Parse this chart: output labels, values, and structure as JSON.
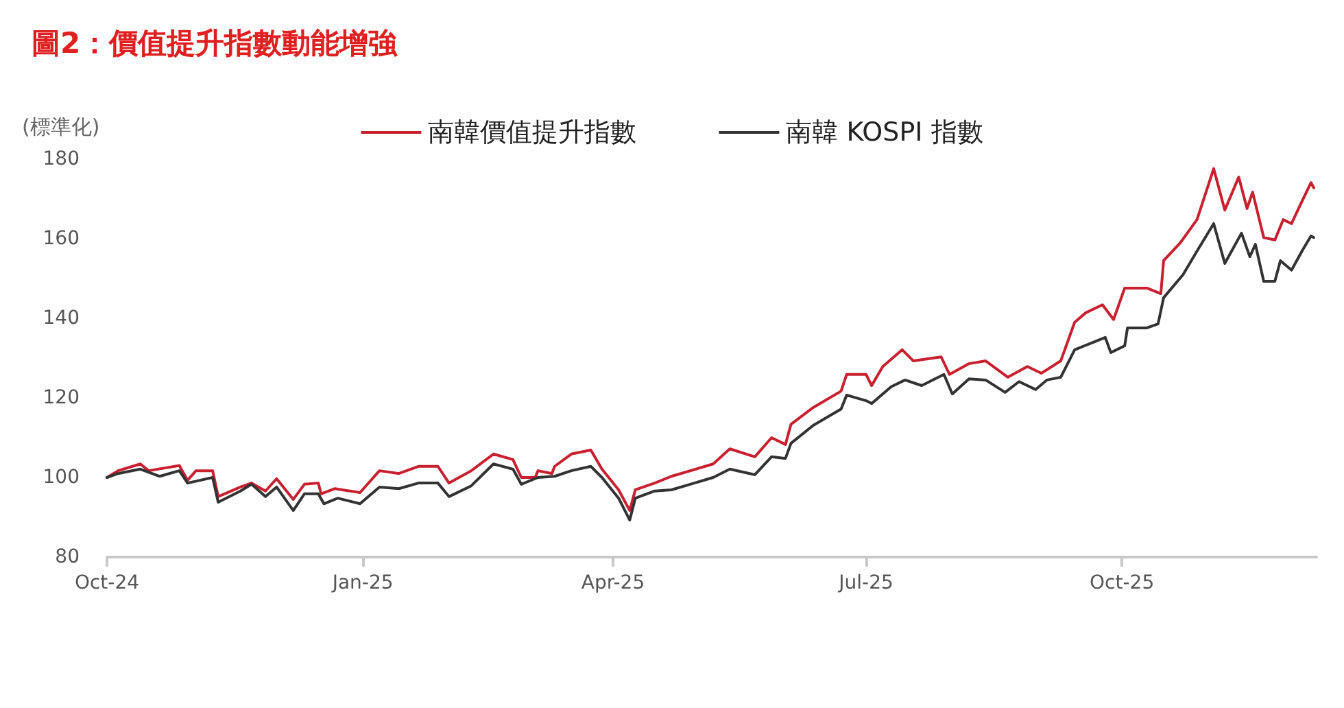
{
  "chart_data": {
    "type": "line",
    "title": "圖2：價值提升指數動能增強",
    "ylabel": "(標準化)",
    "xlim": [
      "2024-10-01",
      "2025-12-10"
    ],
    "xticks": [
      {
        "value": "2024-10-01",
        "label": "Oct-24"
      },
      {
        "value": "2025-01-01",
        "label": "Jan-25"
      },
      {
        "value": "2025-04-01",
        "label": "Apr-25"
      },
      {
        "value": "2025-07-01",
        "label": "Jul-25"
      },
      {
        "value": "2025-10-01",
        "label": "Oct-25"
      }
    ],
    "ylim": [
      80,
      180
    ],
    "yticks": [
      80,
      100,
      120,
      140,
      160,
      180
    ],
    "grid": false,
    "legend": "top",
    "marker": "none",
    "line_style": "solid",
    "series": [
      {
        "name": "南韓價值提升指數",
        "color": "#c8202f",
        "x": [
          "2024-10-01",
          "2024-10-05",
          "2024-10-13",
          "2024-10-16",
          "2024-10-27",
          "2024-10-30",
          "2024-11-02",
          "2024-11-08",
          "2024-11-10",
          "2024-11-18",
          "2024-11-22",
          "2024-11-27",
          "2024-12-01",
          "2024-12-07",
          "2024-12-11",
          "2024-12-16",
          "2024-12-17",
          "2024-12-22",
          "2024-12-31",
          "2025-01-07",
          "2025-01-14",
          "2025-01-21",
          "2025-01-28",
          "2025-02-01",
          "2025-02-09",
          "2025-02-17",
          "2025-02-24",
          "2025-02-27",
          "2025-03-04",
          "2025-03-05",
          "2025-03-10",
          "2025-03-11",
          "2025-03-17",
          "2025-03-24",
          "2025-03-28",
          "2025-04-03",
          "2025-04-07",
          "2025-04-09",
          "2025-04-16",
          "2025-04-22",
          "2025-05-07",
          "2025-05-13",
          "2025-05-22",
          "2025-05-28",
          "2025-06-02",
          "2025-06-04",
          "2025-06-12",
          "2025-06-22",
          "2025-06-24",
          "2025-07-01",
          "2025-07-03",
          "2025-07-07",
          "2025-07-14",
          "2025-07-18",
          "2025-07-28",
          "2025-07-31",
          "2025-08-07",
          "2025-08-13",
          "2025-08-21",
          "2025-08-28",
          "2025-09-02",
          "2025-09-09",
          "2025-09-14",
          "2025-09-18",
          "2025-09-24",
          "2025-09-28",
          "2025-10-02",
          "2025-10-10",
          "2025-10-15",
          "2025-10-16",
          "2025-10-22",
          "2025-10-28",
          "2025-11-03",
          "2025-11-07",
          "2025-11-12",
          "2025-11-15",
          "2025-11-17",
          "2025-11-21",
          "2025-11-25",
          "2025-11-28",
          "2025-12-01",
          "2025-12-04",
          "2025-12-08",
          "2025-12-09"
        ],
        "values": [
          100,
          101.7,
          103.4,
          101.7,
          103,
          99.3,
          101.7,
          101.7,
          95.2,
          97.6,
          98.6,
          96.6,
          99.7,
          94.5,
          98.3,
          98.6,
          95.9,
          97.2,
          96.2,
          101.7,
          101,
          102.8,
          102.8,
          98.6,
          101.7,
          105.9,
          104.5,
          100,
          100,
          101.7,
          101,
          102.8,
          105.9,
          106.9,
          102.1,
          96.9,
          91.7,
          96.9,
          98.6,
          100.3,
          103.4,
          107.2,
          105.2,
          110,
          108.3,
          113.4,
          117.6,
          121.7,
          125.9,
          125.9,
          123.1,
          127.9,
          132.1,
          129.3,
          130.3,
          125.9,
          128.6,
          129.3,
          125.2,
          127.9,
          126.2,
          129.3,
          139,
          141.4,
          143.4,
          139.7,
          147.6,
          147.6,
          146.2,
          154.5,
          159,
          164.8,
          177.6,
          167.2,
          175.5,
          167.6,
          171.7,
          160.3,
          159.7,
          164.8,
          163.8,
          168.3,
          174.1,
          172.8
        ]
      },
      {
        "name": "南韓 KOSPI 指數",
        "color": "#333333",
        "x": [
          "2024-10-01",
          "2024-10-05",
          "2024-10-13",
          "2024-10-20",
          "2024-10-27",
          "2024-10-30",
          "2024-11-08",
          "2024-11-10",
          "2024-11-18",
          "2024-11-22",
          "2024-11-27",
          "2024-12-01",
          "2024-12-07",
          "2024-12-11",
          "2024-12-16",
          "2024-12-18",
          "2024-12-23",
          "2024-12-31",
          "2025-01-07",
          "2025-01-14",
          "2025-01-21",
          "2025-01-28",
          "2025-02-01",
          "2025-02-09",
          "2025-02-17",
          "2025-02-24",
          "2025-02-27",
          "2025-03-05",
          "2025-03-11",
          "2025-03-17",
          "2025-03-24",
          "2025-03-28",
          "2025-04-03",
          "2025-04-07",
          "2025-04-09",
          "2025-04-16",
          "2025-04-22",
          "2025-05-07",
          "2025-05-13",
          "2025-05-22",
          "2025-05-28",
          "2025-06-02",
          "2025-06-04",
          "2025-06-12",
          "2025-06-22",
          "2025-06-24",
          "2025-07-01",
          "2025-07-03",
          "2025-07-10",
          "2025-07-15",
          "2025-07-21",
          "2025-07-29",
          "2025-08-01",
          "2025-08-07",
          "2025-08-13",
          "2025-08-20",
          "2025-08-25",
          "2025-08-31",
          "2025-09-04",
          "2025-09-09",
          "2025-09-14",
          "2025-09-25",
          "2025-09-27",
          "2025-10-02",
          "2025-10-03",
          "2025-10-10",
          "2025-10-14",
          "2025-10-16",
          "2025-10-23",
          "2025-10-28",
          "2025-11-03",
          "2025-11-07",
          "2025-11-13",
          "2025-11-16",
          "2025-11-18",
          "2025-11-21",
          "2025-11-25",
          "2025-11-27",
          "2025-12-01",
          "2025-12-05",
          "2025-12-08",
          "2025-12-09"
        ],
        "values": [
          100,
          101,
          102.1,
          100.3,
          101.7,
          98.6,
          100,
          93.8,
          96.6,
          98.3,
          95.2,
          97.6,
          91.7,
          95.9,
          95.9,
          93.4,
          94.8,
          93.4,
          97.6,
          97.2,
          98.6,
          98.6,
          95.2,
          97.9,
          103.4,
          102.1,
          98.3,
          100,
          100.3,
          101.7,
          102.8,
          100,
          94.8,
          89.3,
          94.8,
          96.6,
          96.9,
          100,
          102.1,
          100.7,
          105.2,
          104.8,
          108.6,
          113.1,
          117.2,
          120.7,
          119.3,
          118.6,
          122.8,
          124.5,
          123.1,
          125.9,
          121,
          124.8,
          124.5,
          121.4,
          124.1,
          122.1,
          124.5,
          125.2,
          132.1,
          135.2,
          131.4,
          133.1,
          137.6,
          137.6,
          138.6,
          145.2,
          151,
          156.9,
          163.8,
          153.8,
          161.4,
          155.5,
          158.6,
          149.3,
          149.3,
          154.5,
          152.1,
          157.2,
          160.7,
          160.3
        ]
      }
    ]
  }
}
